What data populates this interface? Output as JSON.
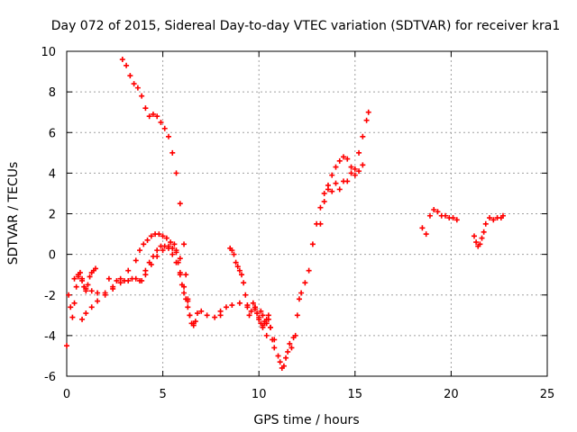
{
  "chart_data": {
    "type": "scatter",
    "title": "Day 072 of 2015, Sidereal Day-to-day VTEC variation (SDTVAR) for receiver kra1",
    "xlabel": "GPS time / hours",
    "ylabel": "SDTVAR / TECUs",
    "xlim": [
      0,
      25
    ],
    "ylim": [
      -6,
      10
    ],
    "x_ticks": [
      "0",
      "5",
      "10",
      "15",
      "20",
      "25"
    ],
    "y_ticks": [
      "-6",
      "-4",
      "-2",
      "0",
      "2",
      "4",
      "6",
      "8",
      "10"
    ],
    "grid": true,
    "marker": "+",
    "colors": {
      "points": "#ff0000",
      "grid": "#a0a0a0",
      "axes": "#000000"
    },
    "series": [
      {
        "x": [
          2.9,
          3.1,
          3.3,
          3.5,
          3.7,
          3.9,
          4.1,
          4.3,
          4.5,
          4.7,
          4.9,
          5.1,
          5.3,
          5.5,
          5.7,
          5.9,
          6.1,
          6.2,
          6.3,
          6.4,
          6.5,
          6.6,
          6.7,
          6.8,
          7.0,
          7.3,
          7.7,
          8.0
        ],
        "y": [
          9.6,
          9.3,
          8.8,
          8.4,
          8.2,
          7.8,
          7.2,
          6.8,
          6.9,
          6.8,
          6.5,
          6.2,
          5.8,
          5.0,
          4.0,
          2.5,
          0.5,
          -1.0,
          -2.2,
          -3.0,
          -3.4,
          -3.5,
          -3.3,
          -2.9,
          -2.8,
          -3.0,
          -3.1,
          -3.0
        ]
      },
      {
        "x": [
          0.1,
          0.2,
          0.3,
          0.4,
          0.5,
          0.6,
          0.7,
          0.8,
          0.9,
          1.0,
          1.1,
          1.2,
          1.3,
          1.4,
          1.5
        ],
        "y": [
          -2.0,
          -2.6,
          -3.1,
          -2.4,
          -1.6,
          -1.1,
          -0.9,
          -1.2,
          -1.6,
          -1.8,
          -1.5,
          -1.1,
          -0.9,
          -0.8,
          -0.7
        ]
      },
      {
        "x": [
          0.4,
          0.6,
          0.8,
          1.0,
          1.3,
          1.6,
          2.0,
          2.4,
          2.8,
          3.2,
          3.6,
          3.8,
          4.0,
          4.2,
          4.4,
          4.6,
          4.8,
          5.0,
          5.2,
          5.4,
          5.6,
          5.7,
          5.8,
          5.9,
          6.0,
          6.1,
          6.2,
          6.3,
          6.4,
          6.6
        ],
        "y": [
          -1.2,
          -1.0,
          -1.3,
          -1.7,
          -1.8,
          -1.9,
          -1.9,
          -1.6,
          -1.2,
          -0.8,
          -0.3,
          0.2,
          0.5,
          0.7,
          0.9,
          1.0,
          1.0,
          0.9,
          0.8,
          0.6,
          0.5,
          0.2,
          -0.4,
          -1.0,
          -1.5,
          -1.9,
          -2.2,
          -2.6,
          -3.0,
          -3.4
        ]
      },
      {
        "x": [
          0.8,
          1.0,
          1.3,
          1.6,
          2.0,
          2.4,
          2.8,
          3.2,
          3.6,
          3.9,
          4.1,
          4.3,
          4.5,
          4.7,
          4.9,
          5.1,
          5.3,
          5.5,
          5.7,
          5.9,
          6.1,
          6.3
        ],
        "y": [
          -3.2,
          -2.9,
          -2.6,
          -2.3,
          -2.0,
          -1.7,
          -1.4,
          -1.3,
          -1.2,
          -1.3,
          -0.8,
          -0.4,
          -0.1,
          0.2,
          0.4,
          0.4,
          0.3,
          0.0,
          -0.4,
          -0.9,
          -1.6,
          -2.3
        ]
      },
      {
        "x": [
          2.2,
          2.6,
          3.0,
          3.4,
          3.8,
          4.1,
          4.4,
          4.7,
          5.0,
          5.3,
          5.5,
          5.7,
          5.9
        ],
        "y": [
          -1.2,
          -1.3,
          -1.3,
          -1.2,
          -1.3,
          -1.0,
          -0.5,
          -0.1,
          0.2,
          0.4,
          0.3,
          0.1,
          -0.2
        ]
      },
      {
        "x": [
          8.0,
          8.3,
          8.6,
          9.0,
          9.4,
          9.8,
          10.1,
          10.2,
          10.3,
          10.4,
          10.5,
          10.6,
          10.8,
          11.0,
          11.1,
          11.2,
          11.3,
          11.4,
          11.5,
          11.6,
          11.7,
          11.8,
          11.9,
          12.0,
          12.1,
          12.2,
          12.4,
          12.6,
          12.8,
          13.0,
          13.2,
          13.4,
          13.6,
          13.8,
          14.0,
          14.2,
          14.4,
          14.6,
          14.8,
          15.0,
          15.2,
          15.4,
          15.6,
          15.7
        ],
        "y": [
          -2.8,
          -2.6,
          -2.5,
          -2.4,
          -2.5,
          -2.6,
          -2.8,
          -3.0,
          -3.3,
          -3.4,
          -3.2,
          -3.6,
          -4.2,
          -5.0,
          -5.3,
          -5.6,
          -5.5,
          -5.1,
          -4.8,
          -4.4,
          -4.6,
          -4.1,
          -4.0,
          -3.0,
          -2.2,
          -1.9,
          -1.4,
          -0.8,
          0.5,
          1.5,
          2.3,
          3.0,
          3.2,
          3.1,
          3.5,
          3.2,
          3.6,
          3.6,
          4.0,
          4.2,
          5.0,
          5.8,
          6.6,
          7.0
        ]
      },
      {
        "x": [
          8.5,
          8.6,
          8.7,
          8.8,
          8.9,
          9.0,
          9.1,
          9.2,
          9.3,
          9.4,
          9.5,
          9.6,
          9.8,
          10.0,
          10.2,
          10.4
        ],
        "y": [
          0.3,
          0.2,
          0.0,
          -0.4,
          -0.6,
          -0.8,
          -1.0,
          -1.4,
          -2.0,
          -2.6,
          -3.0,
          -2.8,
          -2.6,
          -3.1,
          -3.6,
          -4.0
        ]
      },
      {
        "x": [
          9.7,
          9.8,
          9.9,
          10.0,
          10.1,
          10.2,
          10.3,
          10.4,
          10.5,
          10.6,
          10.7,
          10.8
        ],
        "y": [
          -2.4,
          -2.7,
          -2.9,
          -3.2,
          -3.4,
          -3.5,
          -3.4,
          -3.2,
          -3.0,
          -3.6,
          -4.2,
          -4.6
        ]
      },
      {
        "x": [
          13.2,
          13.4,
          13.6,
          13.8,
          14.0,
          14.2,
          14.4,
          14.6,
          14.8,
          15.0,
          15.2,
          15.4
        ],
        "y": [
          1.5,
          2.6,
          3.4,
          3.9,
          4.3,
          4.6,
          4.8,
          4.7,
          4.3,
          3.9,
          4.1,
          4.4
        ]
      },
      {
        "x": [
          18.5,
          18.7,
          18.9,
          19.1,
          19.3,
          19.5,
          19.7,
          19.9,
          20.1,
          20.3
        ],
        "y": [
          1.3,
          1.0,
          1.9,
          2.2,
          2.1,
          1.9,
          1.9,
          1.8,
          1.8,
          1.7
        ]
      },
      {
        "x": [
          21.2,
          21.3,
          21.4,
          21.5,
          21.6,
          21.7,
          21.8,
          22.0,
          22.2,
          22.4,
          22.6,
          22.7
        ],
        "y": [
          0.9,
          0.6,
          0.4,
          0.5,
          0.8,
          1.1,
          1.5,
          1.8,
          1.7,
          1.8,
          1.8,
          1.9
        ]
      },
      {
        "x": [
          0.0
        ],
        "y": [
          -4.5
        ]
      }
    ]
  }
}
